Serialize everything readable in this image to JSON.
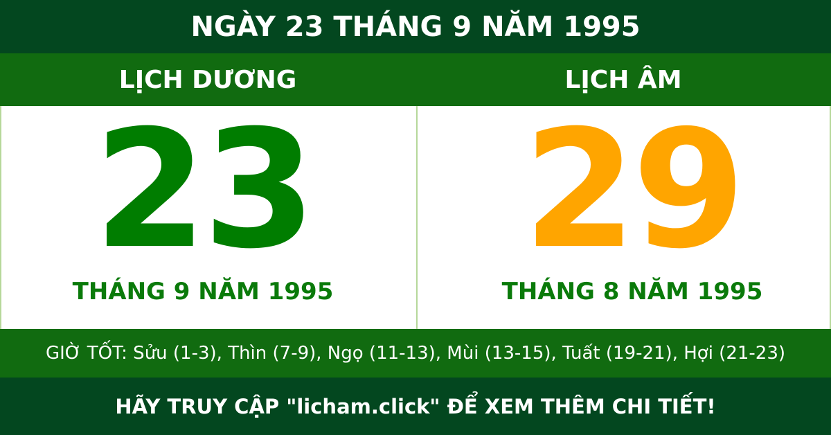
{
  "header": {
    "title": "NGÀY 23 THÁNG 9 NĂM 1995"
  },
  "solar": {
    "label": "LỊCH DƯƠNG",
    "day": "23",
    "month_year": "THÁNG 9 NĂM 1995",
    "color": "#007d00"
  },
  "lunar": {
    "label": "LỊCH ÂM",
    "day": "29",
    "month_year": "THÁNG 8 NĂM 1995",
    "color": "#ffa500"
  },
  "good_hours": "GIỜ TỐT: Sửu (1-3), Thìn (7-9), Ngọ (11-13), Mùi (13-15), Tuất (19-21), Hợi (21-23)",
  "footer": "HÃY TRUY CẬP \"licham.click\" ĐỂ XEM THÊM CHI TIẾT!",
  "colors": {
    "dark_green": "#03471f",
    "green": "#116b10"
  }
}
